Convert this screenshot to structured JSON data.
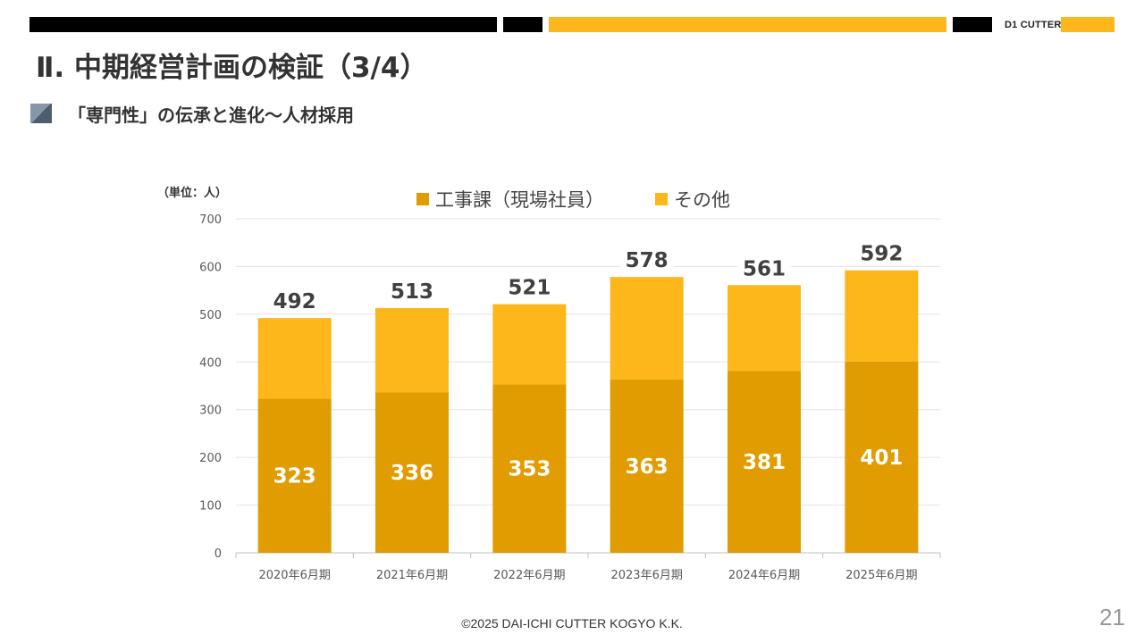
{
  "header": {
    "logo_text": "D1 CUTTER",
    "title": "Ⅱ. 中期経営計画の検証（3/4）",
    "subtitle": "「専門性」の伝承と進化～人材採用"
  },
  "colors": {
    "black": "#000000",
    "accent_yellow": "#fdb71a",
    "series_dark": "#e09c00",
    "series_light": "#fdb71a"
  },
  "chart_data": {
    "type": "bar",
    "stacked": true,
    "unit_label": "（単位：人）",
    "categories": [
      "2020年6月期",
      "2021年6月期",
      "2022年6月期",
      "2023年6月期",
      "2024年6月期",
      "2025年6月期"
    ],
    "series": [
      {
        "name": "工事課（現場社員）",
        "values": [
          323,
          336,
          353,
          363,
          381,
          401
        ],
        "color": "#e09c00"
      },
      {
        "name": "その他",
        "values": [
          169,
          177,
          168,
          215,
          180,
          191
        ],
        "color": "#fdb71a"
      }
    ],
    "totals": [
      492,
      513,
      521,
      578,
      561,
      592
    ],
    "ylim": [
      0,
      700
    ],
    "yticks": [
      0,
      100,
      200,
      300,
      400,
      500,
      600,
      700
    ],
    "grid": true,
    "legend_position": "top"
  },
  "footer": {
    "copyright": "©2025 DAI-ICHI CUTTER KOGYO K.K.",
    "page_number": "21"
  }
}
